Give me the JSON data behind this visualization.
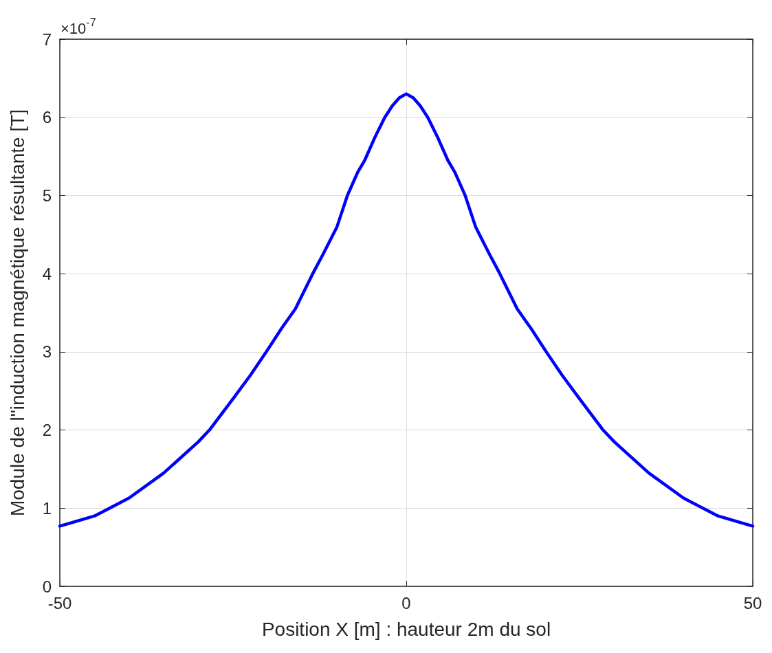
{
  "chart_data": {
    "type": "line",
    "xlabel": "Position X [m] : hauteur 2m du sol",
    "ylabel": "Module de l\"induction magnétique résultante [T]",
    "annotations": [
      "×10$^{-7}$"
    ],
    "series": [
      {
        "color": "#0000ff",
        "x": [
          -50,
          -45,
          -42.8,
          -40,
          -35,
          -30,
          -28.4,
          -25,
          -22.5,
          -20.2,
          -18,
          -16,
          -13.5,
          -12,
          -10,
          -8.5,
          -7,
          -6,
          -4.5,
          -3.1,
          -2,
          -1,
          0,
          1,
          2,
          3.1,
          4.5,
          6,
          7,
          8.5,
          10,
          12,
          13.5,
          16,
          18,
          20.2,
          22.5,
          25,
          28.4,
          30,
          35,
          40,
          42.8,
          45,
          50
        ],
        "values": [
          0.77,
          0.9,
          1.0,
          1.13,
          1.45,
          1.85,
          2.0,
          2.4,
          2.7,
          3.0,
          3.3,
          3.55,
          4.0,
          4.25,
          4.6,
          5.0,
          5.3,
          5.45,
          5.75,
          6.0,
          6.15,
          6.25,
          6.3,
          6.25,
          6.15,
          6.0,
          5.75,
          5.45,
          5.3,
          5.0,
          4.6,
          4.25,
          4.0,
          3.55,
          3.3,
          3.0,
          2.7,
          2.4,
          2.0,
          1.85,
          1.45,
          1.13,
          1.0,
          0.9,
          0.77
        ]
      }
    ],
    "xlim": [
      -50,
      50
    ],
    "xticks": [
      -50,
      0,
      50
    ],
    "ylim": [
      0,
      7
    ],
    "yticks": [
      0,
      1,
      2,
      3,
      4,
      5,
      6,
      7
    ],
    "grid": true,
    "marker": "none",
    "line_style": "solid"
  }
}
